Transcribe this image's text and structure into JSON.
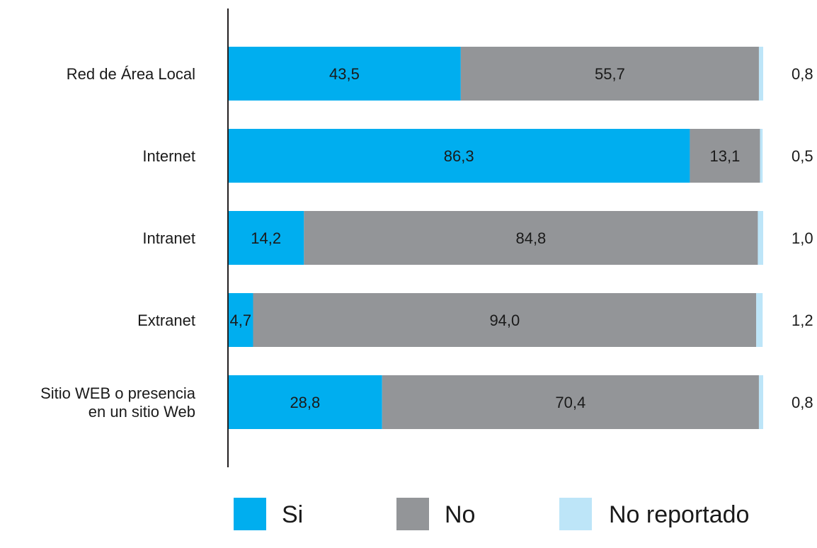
{
  "chart_data": {
    "type": "bar",
    "orientation": "horizontal",
    "stacked": true,
    "categories": [
      [
        "Red de Área Local"
      ],
      [
        "Internet"
      ],
      [
        "Intranet"
      ],
      [
        "Extranet"
      ],
      [
        "Sitio WEB o presencia",
        "en un sitio Web"
      ]
    ],
    "series": [
      {
        "name": "Si",
        "color": "#00aeef",
        "values": [
          43.5,
          86.3,
          14.2,
          4.7,
          28.8
        ],
        "labels": [
          "43,5",
          "86,3",
          "14,2",
          "4,7",
          "28,8"
        ]
      },
      {
        "name": "No",
        "color": "#939598",
        "values": [
          55.7,
          13.1,
          84.8,
          94.0,
          70.4
        ],
        "labels": [
          "55,7",
          "13,1",
          "84,8",
          "94,0",
          "70,4"
        ]
      },
      {
        "name": "No reportado",
        "color": "#bde5f8",
        "values": [
          0.8,
          0.5,
          1.0,
          1.2,
          0.8
        ],
        "labels": [
          "0,8",
          "0,5",
          "1,0",
          "1,2",
          "0,8"
        ]
      }
    ],
    "xlim": [
      0,
      100
    ],
    "grid": false,
    "legend": "bottom"
  }
}
